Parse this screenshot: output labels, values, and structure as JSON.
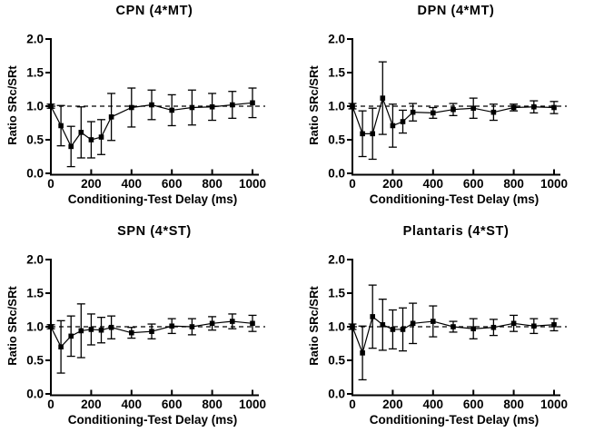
{
  "figure": {
    "background": "#ffffff",
    "foreground": "#000000"
  },
  "chart_data": [
    {
      "id": "cpn",
      "type": "line",
      "title": "CPN (4*MT)",
      "xlabel": "Conditioning-Test Delay (ms)",
      "ylabel": "Ratio SRc/SRt",
      "x": [
        0,
        50,
        100,
        150,
        200,
        250,
        300,
        400,
        500,
        600,
        700,
        800,
        900,
        1000
      ],
      "values": [
        1.0,
        0.71,
        0.4,
        0.61,
        0.5,
        0.54,
        0.84,
        0.98,
        1.02,
        0.94,
        0.98,
        0.99,
        1.02,
        1.05
      ],
      "errors": [
        0.03,
        0.3,
        0.3,
        0.38,
        0.27,
        0.26,
        0.35,
        0.29,
        0.22,
        0.23,
        0.26,
        0.2,
        0.2,
        0.22
      ],
      "x_ticks": [
        0,
        200,
        400,
        600,
        800,
        1000
      ],
      "y_ticks": [
        "0.0",
        "0.5",
        "1.0",
        "1.5",
        "2.0"
      ],
      "xlim": [
        0,
        1000
      ],
      "ylim": [
        0,
        2
      ],
      "reference_line": 1.0,
      "reference_style": "dashed",
      "marker": "filled-square",
      "grid": false,
      "legend": null,
      "color": "#000000"
    },
    {
      "id": "dpn",
      "type": "line",
      "title": "DPN (4*MT)",
      "xlabel": "Conditioning-Test Delay (ms)",
      "ylabel": "Ratio SRc/SRt",
      "x": [
        0,
        50,
        100,
        150,
        200,
        250,
        300,
        400,
        500,
        600,
        700,
        800,
        900,
        1000
      ],
      "values": [
        1.0,
        0.59,
        0.59,
        1.12,
        0.71,
        0.77,
        0.91,
        0.9,
        0.95,
        0.97,
        0.91,
        0.98,
        0.99,
        0.98
      ],
      "errors": [
        0.04,
        0.34,
        0.38,
        0.54,
        0.32,
        0.17,
        0.13,
        0.08,
        0.09,
        0.15,
        0.12,
        0.05,
        0.09,
        0.09
      ],
      "x_ticks": [
        0,
        200,
        400,
        600,
        800,
        1000
      ],
      "y_ticks": [
        "0.0",
        "0.5",
        "1.0",
        "1.5",
        "2.0"
      ],
      "xlim": [
        0,
        1000
      ],
      "ylim": [
        0,
        2
      ],
      "reference_line": 1.0,
      "reference_style": "dashed",
      "marker": "filled-square",
      "grid": false,
      "legend": null,
      "color": "#000000"
    },
    {
      "id": "spn",
      "type": "line",
      "title": "SPN (4*ST)",
      "xlabel": "Conditioning-Test Delay (ms)",
      "ylabel": "Ratio SRc/SRt",
      "x": [
        0,
        50,
        100,
        150,
        200,
        250,
        300,
        400,
        500,
        600,
        700,
        800,
        900,
        1000
      ],
      "values": [
        1.0,
        0.7,
        0.86,
        0.94,
        0.96,
        0.95,
        0.99,
        0.91,
        0.93,
        1.01,
        1.0,
        1.05,
        1.08,
        1.05
      ],
      "errors": [
        0.03,
        0.39,
        0.3,
        0.4,
        0.23,
        0.19,
        0.17,
        0.08,
        0.11,
        0.11,
        0.12,
        0.1,
        0.11,
        0.12
      ],
      "x_ticks": [
        0,
        200,
        400,
        600,
        800,
        1000
      ],
      "y_ticks": [
        "0.0",
        "0.5",
        "1.0",
        "1.5",
        "2.0"
      ],
      "xlim": [
        0,
        1000
      ],
      "ylim": [
        0,
        2
      ],
      "reference_line": 1.0,
      "reference_style": "dashed",
      "marker": "filled-square",
      "grid": false,
      "legend": null,
      "color": "#000000"
    },
    {
      "id": "plantaris",
      "type": "line",
      "title": "Plantaris (4*ST)",
      "xlabel": "Conditioning-Test Delay (ms)",
      "ylabel": "Ratio SRc/SRt",
      "x": [
        0,
        50,
        100,
        150,
        200,
        250,
        300,
        400,
        500,
        600,
        700,
        800,
        900,
        1000
      ],
      "values": [
        1.0,
        0.61,
        1.15,
        1.03,
        0.96,
        0.96,
        1.05,
        1.08,
        1.0,
        0.97,
        0.99,
        1.05,
        1.01,
        1.03
      ],
      "errors": [
        0.04,
        0.4,
        0.47,
        0.38,
        0.29,
        0.32,
        0.3,
        0.23,
        0.08,
        0.15,
        0.12,
        0.12,
        0.11,
        0.09
      ],
      "x_ticks": [
        0,
        200,
        400,
        600,
        800,
        1000
      ],
      "y_ticks": [
        "0.0",
        "0.5",
        "1.0",
        "1.5",
        "2.0"
      ],
      "xlim": [
        0,
        1000
      ],
      "ylim": [
        0,
        2
      ],
      "reference_line": 1.0,
      "reference_style": "dashed",
      "marker": "filled-square",
      "grid": false,
      "legend": null,
      "color": "#000000"
    }
  ]
}
